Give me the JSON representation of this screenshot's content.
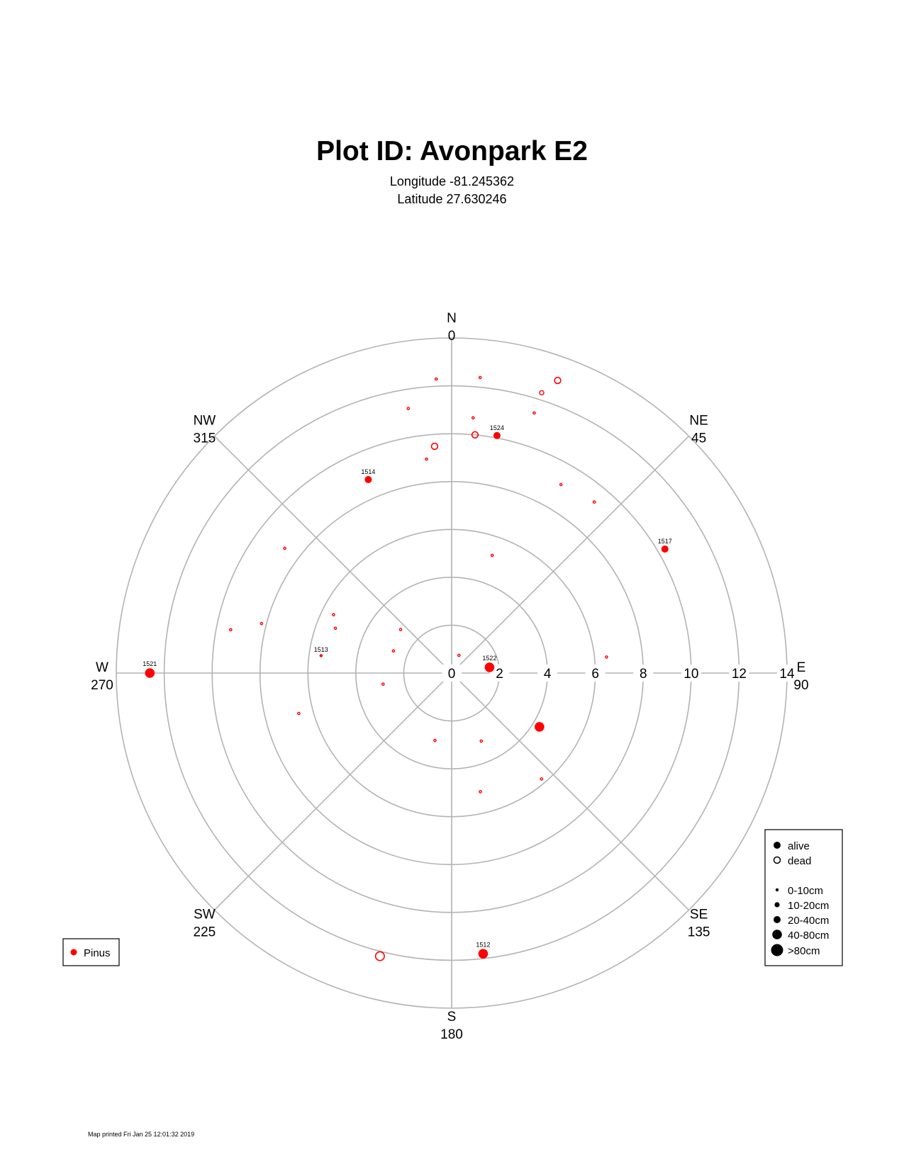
{
  "title": "Plot ID:  Avonpark E2",
  "longitude": "Longitude -81.245362",
  "latitude": "Latitude 27.630246",
  "footer": "Map printed Fri Jan 25 12:01:32 2019",
  "chart_data": {
    "type": "scatter",
    "coordinate_system": "polar",
    "radial_ticks": [
      0,
      2,
      4,
      6,
      8,
      10,
      12,
      14
    ],
    "radial_max": 14,
    "directions": [
      {
        "name": "N",
        "degrees": "0",
        "angle": 0
      },
      {
        "name": "NE",
        "degrees": "45",
        "angle": 45
      },
      {
        "name": "E",
        "degrees": "90",
        "angle": 90
      },
      {
        "name": "SE",
        "degrees": "135",
        "angle": 135
      },
      {
        "name": "S",
        "degrees": "180",
        "angle": 180
      },
      {
        "name": "SW",
        "degrees": "225",
        "angle": 225
      },
      {
        "name": "W",
        "degrees": "270",
        "angle": 270
      },
      {
        "name": "NW",
        "degrees": "315",
        "angle": 315
      }
    ],
    "species_legend": [
      {
        "name": "Pinus",
        "color": "#ff0000"
      }
    ],
    "status_legend": [
      "alive",
      "dead"
    ],
    "size_legend": [
      "0-10cm",
      "10-20cm",
      "20-40cm",
      "40-80cm",
      ">80cm"
    ],
    "trees": [
      {
        "azimuth": 5.5,
        "distance": 12.4,
        "status": "dead",
        "size": 1,
        "label": ""
      },
      {
        "azimuth": 17.8,
        "distance": 12.3,
        "status": "dead",
        "size": 2,
        "label": ""
      },
      {
        "azimuth": 19.9,
        "distance": 13.0,
        "status": "dead",
        "size": 3,
        "label": ""
      },
      {
        "azimuth": 4.8,
        "distance": 10.7,
        "status": "dead",
        "size": 1,
        "label": ""
      },
      {
        "azimuth": 5.6,
        "distance": 10.0,
        "status": "dead",
        "size": 3,
        "label": ""
      },
      {
        "azimuth": 10.8,
        "distance": 10.1,
        "status": "alive",
        "size": 3,
        "label": "1524"
      },
      {
        "azimuth": 17.6,
        "distance": 11.4,
        "status": "dead",
        "size": 1,
        "label": ""
      },
      {
        "azimuth": 353.3,
        "distance": 9.0,
        "status": "dead",
        "size": 1,
        "label": ""
      },
      {
        "azimuth": 355.7,
        "distance": 9.5,
        "status": "dead",
        "size": 3,
        "label": ""
      },
      {
        "azimuth": 350.7,
        "distance": 11.2,
        "status": "dead",
        "size": 1,
        "label": ""
      },
      {
        "azimuth": 357.0,
        "distance": 12.3,
        "status": "dead",
        "size": 1,
        "label": ""
      },
      {
        "azimuth": 336.7,
        "distance": 8.8,
        "status": "alive",
        "size": 3,
        "label": "1514"
      },
      {
        "azimuth": 30.1,
        "distance": 9.1,
        "status": "dead",
        "size": 1,
        "label": ""
      },
      {
        "azimuth": 39.8,
        "distance": 9.3,
        "status": "dead",
        "size": 1,
        "label": ""
      },
      {
        "azimuth": 59.8,
        "distance": 10.3,
        "status": "alive",
        "size": 3,
        "label": "1517"
      },
      {
        "azimuth": 19.0,
        "distance": 5.2,
        "status": "dead",
        "size": 1,
        "label": ""
      },
      {
        "azimuth": 22.5,
        "distance": 0.8,
        "status": "dead",
        "size": 1,
        "label": ""
      },
      {
        "azimuth": 81.4,
        "distance": 1.6,
        "status": "alive",
        "size": 4,
        "label": "1522"
      },
      {
        "azimuth": 84.1,
        "distance": 6.5,
        "status": "dead",
        "size": 1,
        "label": ""
      },
      {
        "azimuth": 121.5,
        "distance": 4.3,
        "status": "alive",
        "size": 4,
        "label": ""
      },
      {
        "azimuth": 139.7,
        "distance": 5.8,
        "status": "dead",
        "size": 1,
        "label": ""
      },
      {
        "azimuth": 156.5,
        "distance": 3.1,
        "status": "dead",
        "size": 1,
        "label": ""
      },
      {
        "azimuth": 166.4,
        "distance": 5.1,
        "status": "dead",
        "size": 1,
        "label": ""
      },
      {
        "azimuth": 193.9,
        "distance": 2.9,
        "status": "dead",
        "size": 1,
        "label": ""
      },
      {
        "azimuth": 173.6,
        "distance": 11.8,
        "status": "alive",
        "size": 4,
        "label": "1512"
      },
      {
        "azimuth": 194.2,
        "distance": 12.2,
        "status": "dead",
        "size": 4,
        "label": ""
      },
      {
        "azimuth": 260.8,
        "distance": 2.9,
        "status": "dead",
        "size": 1,
        "label": ""
      },
      {
        "azimuth": 255.2,
        "distance": 6.6,
        "status": "dead",
        "size": 1,
        "label": ""
      },
      {
        "azimuth": 290.8,
        "distance": 2.6,
        "status": "dead",
        "size": 1,
        "label": ""
      },
      {
        "azimuth": 310.5,
        "distance": 2.8,
        "status": "dead",
        "size": 1,
        "label": ""
      },
      {
        "azimuth": 296.3,
        "distance": 5.5,
        "status": "dead",
        "size": 1,
        "label": ""
      },
      {
        "azimuth": 291.1,
        "distance": 5.2,
        "status": "dead",
        "size": 1,
        "label": ""
      },
      {
        "azimuth": 277.6,
        "distance": 5.5,
        "status": "alive",
        "size": 1,
        "label": "1513"
      },
      {
        "azimuth": 306.8,
        "distance": 8.7,
        "status": "dead",
        "size": 1,
        "label": ""
      },
      {
        "azimuth": 284.6,
        "distance": 8.2,
        "status": "dead",
        "size": 1,
        "label": ""
      },
      {
        "azimuth": 281.1,
        "distance": 9.4,
        "status": "dead",
        "size": 1,
        "label": ""
      },
      {
        "azimuth": 270.0,
        "distance": 12.6,
        "status": "alive",
        "size": 4,
        "label": "1521"
      }
    ]
  }
}
